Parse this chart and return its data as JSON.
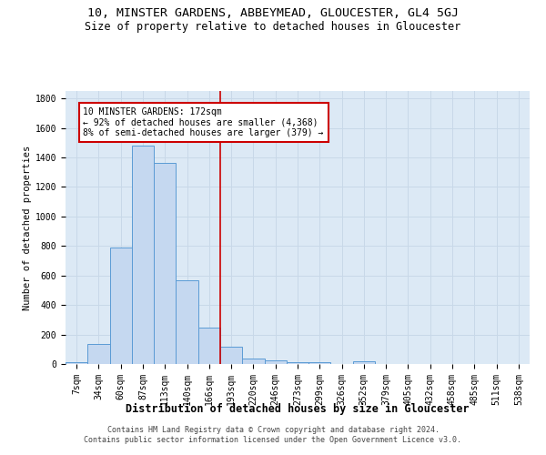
{
  "title": "10, MINSTER GARDENS, ABBEYMEAD, GLOUCESTER, GL4 5GJ",
  "subtitle": "Size of property relative to detached houses in Gloucester",
  "xlabel": "Distribution of detached houses by size in Gloucester",
  "ylabel": "Number of detached properties",
  "bar_labels": [
    "7sqm",
    "34sqm",
    "60sqm",
    "87sqm",
    "113sqm",
    "140sqm",
    "166sqm",
    "193sqm",
    "220sqm",
    "246sqm",
    "273sqm",
    "299sqm",
    "326sqm",
    "352sqm",
    "379sqm",
    "405sqm",
    "432sqm",
    "458sqm",
    "485sqm",
    "511sqm",
    "538sqm"
  ],
  "bar_values": [
    15,
    135,
    790,
    1480,
    1360,
    570,
    245,
    115,
    35,
    25,
    15,
    15,
    0,
    20,
    0,
    0,
    0,
    0,
    0,
    0,
    0
  ],
  "bar_color": "#c5d8f0",
  "bar_edge_color": "#5b9bd5",
  "vline_x_index": 6.5,
  "annotation_text": "10 MINSTER GARDENS: 172sqm\n← 92% of detached houses are smaller (4,368)\n8% of semi-detached houses are larger (379) →",
  "annotation_box_color": "#ffffff",
  "annotation_box_edge": "#cc0000",
  "vline_color": "#cc0000",
  "grid_color": "#c8d8e8",
  "background_color": "#dce9f5",
  "footer_text": "Contains HM Land Registry data © Crown copyright and database right 2024.\nContains public sector information licensed under the Open Government Licence v3.0.",
  "ylim": [
    0,
    1850
  ],
  "yticks": [
    0,
    200,
    400,
    600,
    800,
    1000,
    1200,
    1400,
    1600,
    1800
  ],
  "title_fontsize": 9.5,
  "subtitle_fontsize": 8.5,
  "xlabel_fontsize": 8.5,
  "ylabel_fontsize": 7.5,
  "tick_fontsize": 7,
  "annot_fontsize": 7,
  "footer_fontsize": 6
}
